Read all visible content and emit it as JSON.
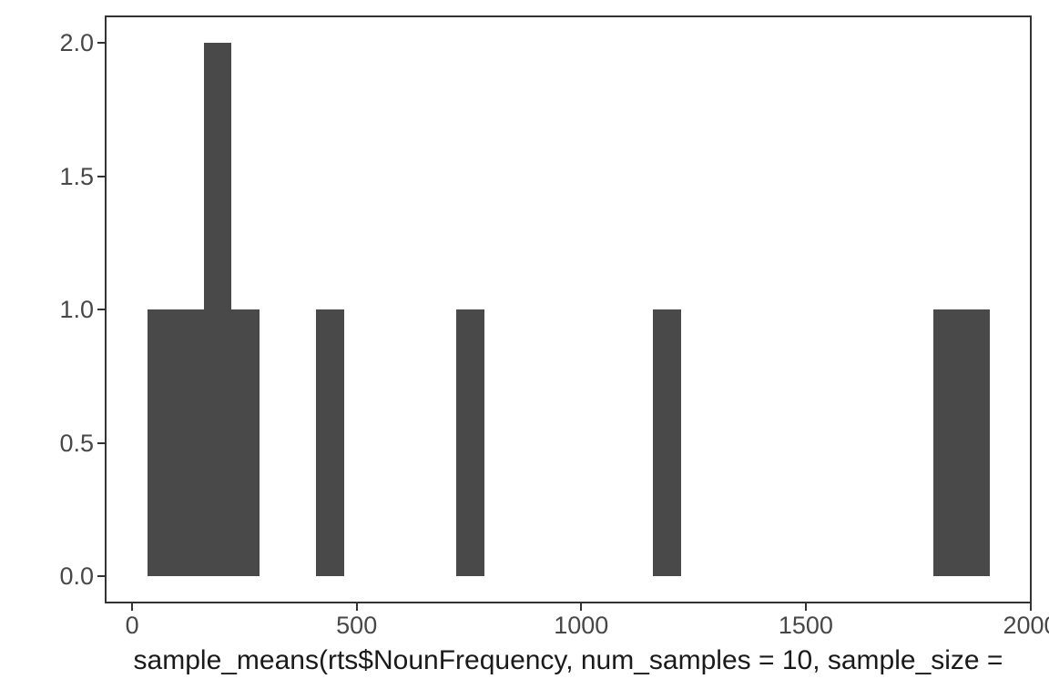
{
  "chart_data": {
    "type": "histogram",
    "title": "",
    "xlabel": "sample_means(rts$NounFrequency, num_samples = 10, sample_size =",
    "ylabel": "",
    "xlim": [
      -59,
      2001
    ],
    "ylim": [
      -0.095,
      2.1
    ],
    "grid": false,
    "legend": "none",
    "bins": [
      {
        "x0": 34,
        "x1": 96.5,
        "count": 1
      },
      {
        "x0": 96.5,
        "x1": 159,
        "count": 1
      },
      {
        "x0": 159,
        "x1": 221.5,
        "count": 2
      },
      {
        "x0": 221.5,
        "x1": 284,
        "count": 1
      },
      {
        "x0": 409,
        "x1": 471.5,
        "count": 1
      },
      {
        "x0": 721.5,
        "x1": 784,
        "count": 1
      },
      {
        "x0": 1159,
        "x1": 1221.5,
        "count": 1
      },
      {
        "x0": 1784,
        "x1": 1846.5,
        "count": 1
      },
      {
        "x0": 1846.5,
        "x1": 1909,
        "count": 1
      }
    ],
    "x_ticks": [
      {
        "value": 0,
        "label": "0"
      },
      {
        "value": 500,
        "label": "500"
      },
      {
        "value": 1000,
        "label": "1000"
      },
      {
        "value": 1500,
        "label": "1500"
      },
      {
        "value": 2000,
        "label": "2000"
      }
    ],
    "y_ticks": [
      {
        "value": 0,
        "label": "0.0"
      },
      {
        "value": 0.5,
        "label": "0.5"
      },
      {
        "value": 1,
        "label": "1.0"
      },
      {
        "value": 1.5,
        "label": "1.5"
      },
      {
        "value": 2,
        "label": "2.0"
      }
    ]
  },
  "colors": {
    "bar": "#494949",
    "axis_text": "#474747",
    "axis_title": "#1a1a1a",
    "panel_border": "#333333",
    "background": "#ffffff"
  }
}
